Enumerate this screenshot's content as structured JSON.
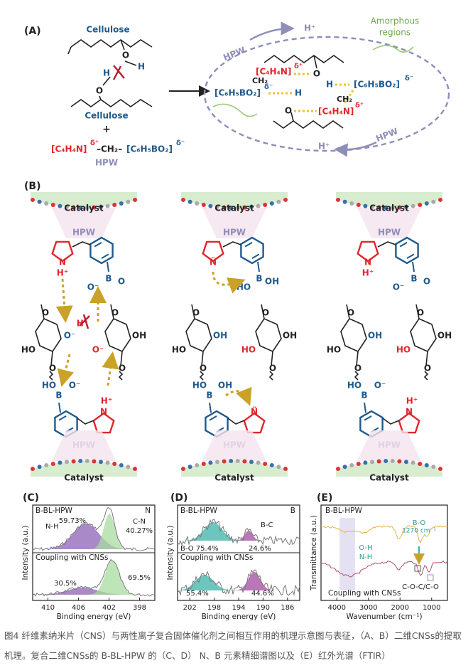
{
  "panel_a": {
    "label": "(A)",
    "cellulose_top": "Cellulose",
    "cellulose_bottom": "Cellulose",
    "o_top": "O",
    "h_top": "H",
    "h_bottom": "H",
    "o_bottom": "O",
    "plus": "+",
    "formula": {
      "cation": "[C₄H₄N]",
      "cation_charge": "δ⁺",
      "linker": "–CH₂–",
      "anion": "[C₆H₅BO₂]",
      "anion_charge": "δ⁻"
    },
    "hpw": "HPW",
    "hpw_upper": "HPW",
    "proton_upper": "H⁺",
    "amorphous": [
      "Amorphous",
      "regions"
    ],
    "inner": {
      "cation1": "[C₄H₄N]",
      "charge1": "δ⁺",
      "o1": "O",
      "h1": "H",
      "anion1": "[C₆H₅BO₂]",
      "charge2": "δ⁻",
      "ch2_1": "CH₂",
      "anion2": "[C₆H₅BO₂]",
      "charge3": "δ⁻",
      "h2": "H",
      "o2": "O",
      "cation2": "[C₄H₄N]",
      "charge4": "δ⁺",
      "ch2_2": "CH₂"
    },
    "hpw_lower": "HPW",
    "proton_lower": "H⁺"
  },
  "panel_b": {
    "label": "(B)",
    "columns": [
      {
        "catalyst_top": "Catalyst",
        "hpw_top": "HPW",
        "top": {
          "n": "N",
          "h": "H⁺",
          "b": "B",
          "o1": "O⁻",
          "o2": "O"
        },
        "rings": [
          {
            "o": "O",
            "r": "O⁻",
            "l": "HO",
            "b": "O"
          },
          {
            "o": "O",
            "r": "OH",
            "l": "O⁻",
            "b": "O"
          }
        ],
        "bond": "H⁺",
        "bottom": {
          "n": "N",
          "h": "H⁺",
          "b": "B",
          "o1": "HO",
          "o2": "O⁻"
        },
        "hpw_bottom": "HPW",
        "catalyst_bottom": "Catalyst"
      },
      {
        "catalyst_top": "Catalyst",
        "hpw_top": "HPW",
        "top": {
          "n": "N̈",
          "b": "B",
          "o1": "HO",
          "o2": "OH"
        },
        "rings": [
          {
            "o": "O",
            "r": "OH",
            "l": "HO",
            "b": "O"
          },
          {
            "o": "O",
            "r": "OH",
            "l": "HO",
            "b": "O"
          }
        ],
        "bottom": {
          "n": "N̈",
          "b": "B",
          "o1": "HO",
          "o2": "OH"
        },
        "hpw_bottom": "HPW",
        "catalyst_bottom": "Catalyst"
      },
      {
        "catalyst_top": "Catalyst",
        "hpw_top": "HPW",
        "top": {
          "n": "N",
          "h": "H⁺",
          "b": "B",
          "o1": "O⁻",
          "o2": "O"
        },
        "rings": [
          {
            "o": "O",
            "r": "OH",
            "l": "HO",
            "b": "O"
          },
          {
            "o": "O",
            "r": "OH",
            "l": "HO",
            "b": "O"
          }
        ],
        "bottom": {
          "n": "N",
          "h": "H⁺",
          "b": "B",
          "o1": "HO",
          "o2": "O⁻"
        },
        "hpw_bottom": "HPW",
        "catalyst_bottom": "Catalyst"
      }
    ]
  },
  "panel_c": {
    "label": "(C)",
    "sample": "B-BL-HPW",
    "element": "N",
    "peak1": "N-H",
    "pct1": "59.73%",
    "peak2": "C-N",
    "pct2": "40.27%",
    "coupled": "Coupling with CNSs",
    "pct3": "30.5%",
    "pct4": "69.5%",
    "ylabel": "Intensity (a.u.)",
    "xlabel": "Binding energy (eV)",
    "xticks": [
      "410",
      "406",
      "402",
      "398"
    ]
  },
  "panel_d": {
    "label": "(D)",
    "sample": "B-BL-HPW",
    "element": "B",
    "peak2": "B-C",
    "peak1": "B-O 75.4%",
    "pct2": "24.6%",
    "coupled": "Coupling with CNSs",
    "pct3": "55.4%",
    "pct4": "44.6%",
    "ylabel": "Intensity (a.u.)",
    "xlabel": "Binding energy (eV)",
    "xticks": [
      "202",
      "198",
      "194",
      "190",
      "186"
    ]
  },
  "panel_e": {
    "label": "(E)",
    "sample": "B-BL-HPW",
    "bo": "B-O",
    "bo_wn": "1270 cm⁻¹",
    "oh": "O-H",
    "nh": "N-H",
    "coc": "C-O-C/C-O",
    "coupled": "Coupling with CNSs",
    "ylabel": "Transmittance (a.u.)",
    "xlabel": "Wavenumber (cm⁻¹)",
    "xticks": [
      "4000",
      "3000",
      "2000",
      "1000"
    ]
  },
  "caption": "图4 纤维素纳米片（CNS）与两性离子复合固体催化剂之间相互作用的机理示意图与表征，（A、B）二维CNSs的提取机理。复合二维CNSs的 B-BL-HPW 的（C、D） N、B 元素精细谱图以及（E）红外光谱（FTIR）"
}
